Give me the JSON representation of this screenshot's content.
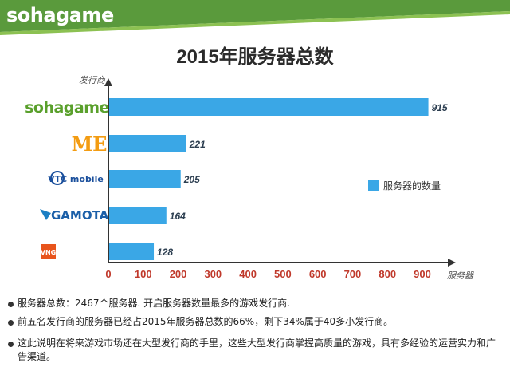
{
  "header": {
    "brand": "sohagame",
    "band_color": "#5a9a3c"
  },
  "chart_data": {
    "type": "bar",
    "orientation": "horizontal",
    "title": "2015年服务器总数",
    "ylabel": "发行商",
    "xlabel": "服务器",
    "categories": [
      "sohagame",
      "ME",
      "VTC mobile",
      "GAMOTA",
      "VNG"
    ],
    "category_logo_text": {
      "sohagame": "sohagame",
      "ME": "ME",
      "VTC mobile": "VTC mobile",
      "GAMOTA": "GAMOTA",
      "VNG": "VNG"
    },
    "series": [
      {
        "name": "服务器的数量",
        "values": [
          915,
          221,
          205,
          164,
          128
        ],
        "color": "#3aa7e6"
      }
    ],
    "xlim": [
      0,
      900
    ],
    "xticks": [
      0,
      100,
      200,
      300,
      400,
      500,
      600,
      700,
      800,
      900
    ],
    "grid": false,
    "legend_position": "right",
    "tick_color": "#c0392b",
    "value_label_color": "#2c3e50"
  },
  "notes": [
    "服务器总数：2467个服务器. 开启服务器数量最多的游戏发行商.",
    "前五名发行商的服务器已经占2015年服务器总数的66%，剩下34%属于40多小发行商。",
    "这此说明在将来游戏市场还在大型发行商的手里，这些大型发行商掌握高质量的游戏，具有多经验的运营实力和广告渠道。"
  ]
}
